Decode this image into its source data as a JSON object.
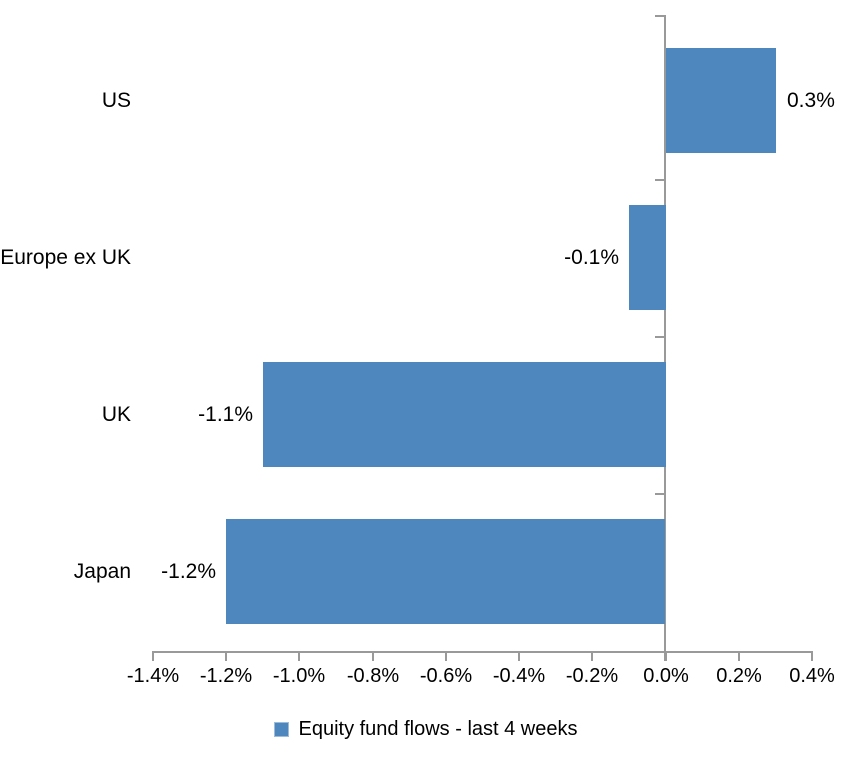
{
  "chart_data": {
    "type": "bar",
    "orientation": "horizontal",
    "title": "",
    "xlabel": "",
    "ylabel": "",
    "categories": [
      "US",
      "Europe ex UK",
      "UK",
      "Japan"
    ],
    "values": [
      0.3,
      -0.1,
      -1.1,
      -1.2
    ],
    "data_labels": [
      "0.3%",
      "-0.1%",
      "-1.1%",
      "-1.2%"
    ],
    "series_name": "Equity fund flows - last 4 weeks",
    "xlim": [
      -1.4,
      0.4
    ],
    "x_tick_values": [
      -1.4,
      -1.2,
      -1.0,
      -0.8,
      -0.6,
      -0.4,
      -0.2,
      0.0,
      0.2,
      0.4
    ],
    "x_tick_labels": [
      "-1.4%",
      "-1.2%",
      "-1.0%",
      "-0.8%",
      "-0.6%",
      "-0.4%",
      "-0.2%",
      "0.0%",
      "0.2%",
      "0.4%"
    ],
    "grid": false,
    "legend_position": "bottom",
    "bar_color": "#4e86be",
    "axis_color": "#999999",
    "text_color": "#000000",
    "background_color": "#ffffff"
  }
}
